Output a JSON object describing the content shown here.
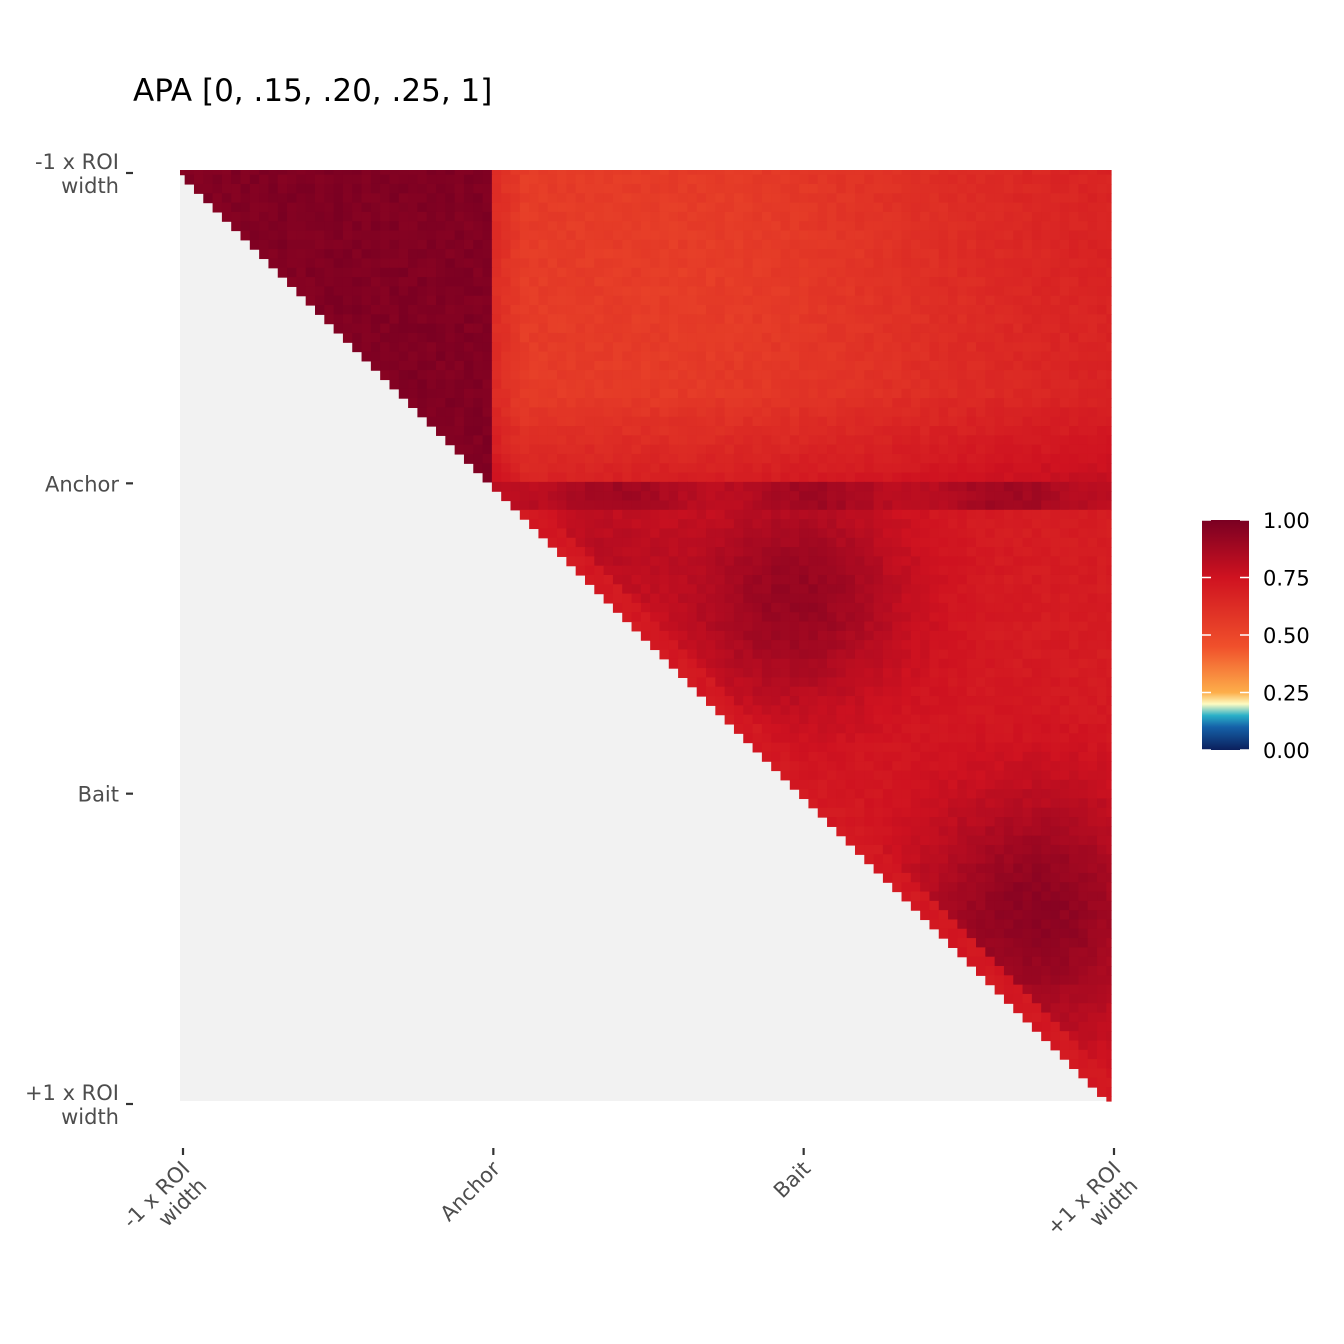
{
  "chart_data": {
    "type": "heatmap",
    "title": "APA [0, .15, .20, .25, 1]",
    "xlabel": "",
    "ylabel": "",
    "x_tick_labels": [
      [
        "-1 x ROI",
        "width"
      ],
      [
        "Anchor"
      ],
      [
        "Bait"
      ],
      [
        "+1 x ROI",
        "width"
      ]
    ],
    "y_tick_labels": [
      [
        "-1 x ROI",
        "width"
      ],
      [
        "Anchor"
      ],
      [
        "Bait"
      ],
      [
        "+1 x ROI",
        "width"
      ]
    ],
    "grid_size": 101,
    "fill_range": [
      0,
      1
    ],
    "masked_region": "lower triangle",
    "masked_color": "#f2f2f2",
    "color_breaks": [
      {
        "value": 0.0,
        "color": "#0b1f5c"
      },
      {
        "value": 0.1,
        "color": "#1561a8"
      },
      {
        "value": 0.15,
        "color": "#2ab0c8"
      },
      {
        "value": 0.2,
        "color": "#fdfbc2"
      },
      {
        "value": 0.25,
        "color": "#fdae4a"
      },
      {
        "value": 0.45,
        "color": "#f0502b"
      },
      {
        "value": 0.75,
        "color": "#cf1220"
      },
      {
        "value": 1.0,
        "color": "#7a0022"
      }
    ],
    "regions": [
      {
        "name": "upstream flank vs itself",
        "value": 0.98
      },
      {
        "name": "upstream flank vs anchor-bait-downstream",
        "value": 0.55
      },
      {
        "name": "anchor row band",
        "value": 0.85
      },
      {
        "name": "anchor-bait core",
        "value": 0.92
      },
      {
        "name": "bait-downstream mid",
        "value": 0.7
      },
      {
        "name": "downstream flank vs itself",
        "value": 0.95
      }
    ],
    "legend": {
      "position": "right",
      "breaks": [
        0.0,
        0.25,
        0.5,
        0.75,
        1.0
      ],
      "labels": [
        "0.00",
        "0.25",
        "0.50",
        "0.75",
        "1.00"
      ]
    },
    "grid": false
  }
}
